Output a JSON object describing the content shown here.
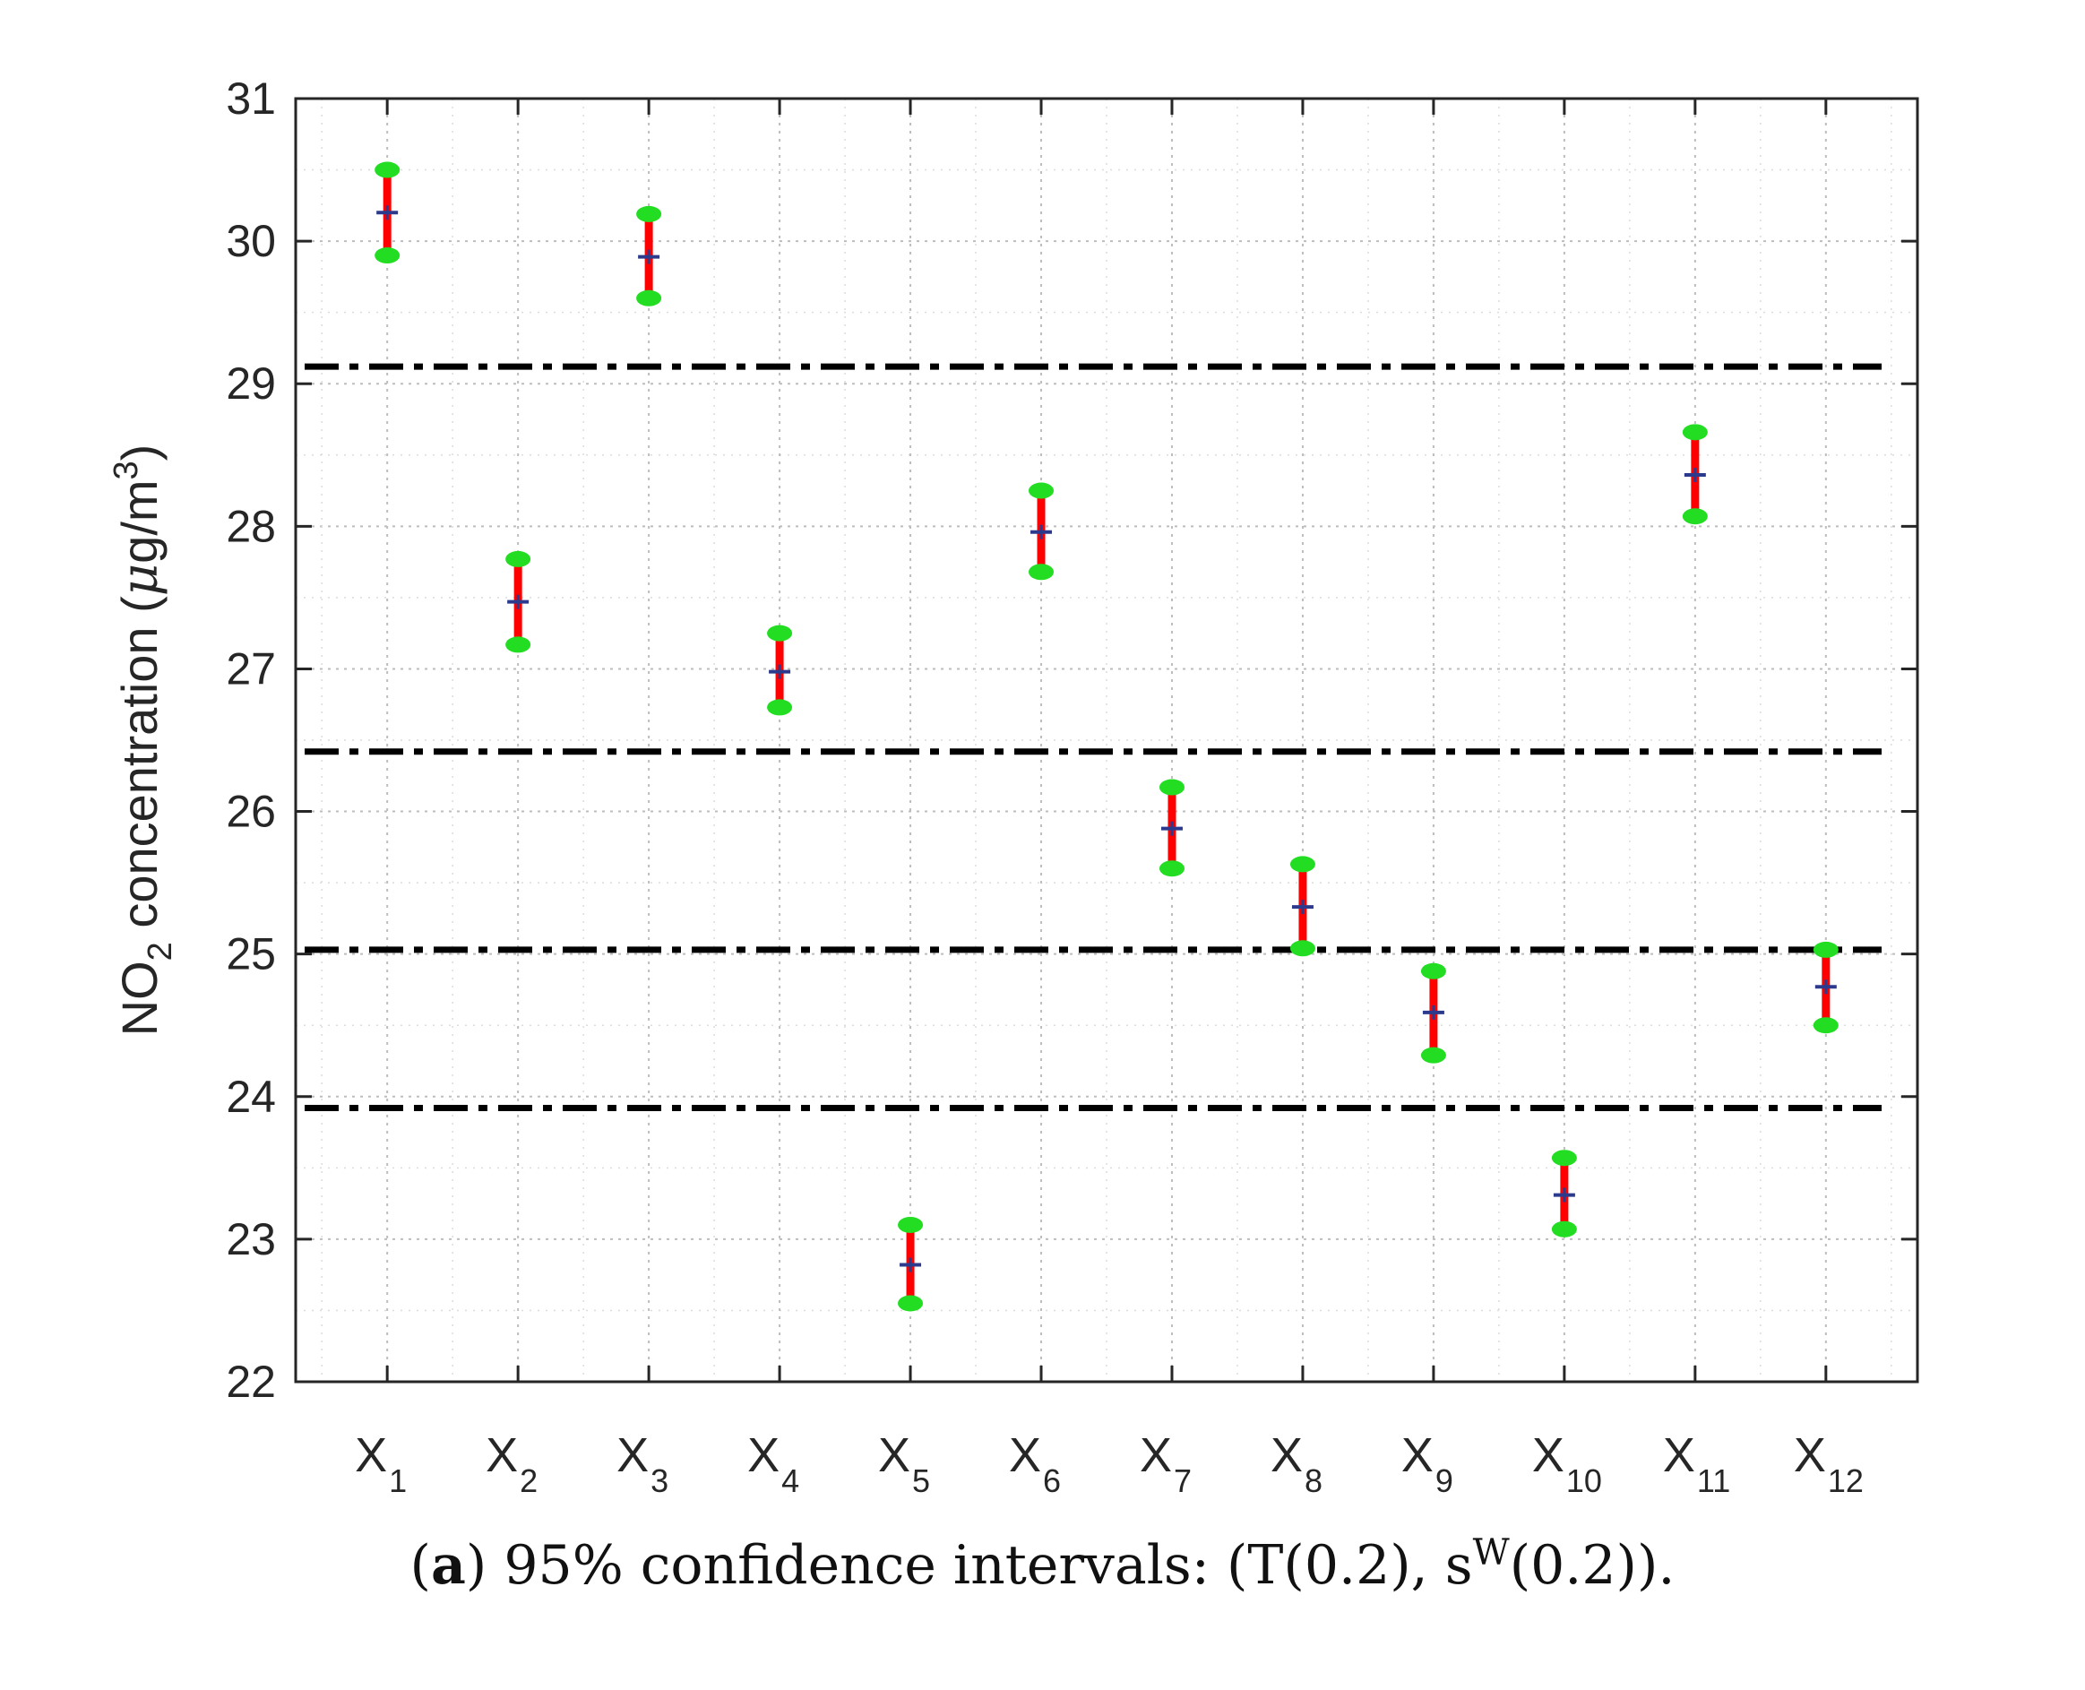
{
  "chart_data": {
    "type": "errorbar",
    "ylim": [
      22,
      31
    ],
    "yticks": [
      22,
      23,
      24,
      25,
      26,
      27,
      28,
      29,
      30,
      31
    ],
    "ylabel": {
      "prefix": "NO",
      "sub": "2",
      "middle": " concentration (",
      "mu": "μ",
      "unit": "g/m",
      "sup": "3",
      "suffix": ")"
    },
    "categories": [
      {
        "base": "X",
        "sub": "1"
      },
      {
        "base": "X",
        "sub": "2"
      },
      {
        "base": "X",
        "sub": "3"
      },
      {
        "base": "X",
        "sub": "4"
      },
      {
        "base": "X",
        "sub": "5"
      },
      {
        "base": "X",
        "sub": "6"
      },
      {
        "base": "X",
        "sub": "7"
      },
      {
        "base": "X",
        "sub": "8"
      },
      {
        "base": "X",
        "sub": "9"
      },
      {
        "base": "X",
        "sub": "10"
      },
      {
        "base": "X",
        "sub": "11"
      },
      {
        "base": "X",
        "sub": "12"
      }
    ],
    "intervals": [
      {
        "mean": 30.2,
        "lower": 29.9,
        "upper": 30.5
      },
      {
        "mean": 27.47,
        "lower": 27.17,
        "upper": 27.77
      },
      {
        "mean": 29.89,
        "lower": 29.6,
        "upper": 30.19
      },
      {
        "mean": 26.98,
        "lower": 26.73,
        "upper": 27.25
      },
      {
        "mean": 22.82,
        "lower": 22.55,
        "upper": 23.1
      },
      {
        "mean": 27.96,
        "lower": 27.68,
        "upper": 28.25
      },
      {
        "mean": 25.88,
        "lower": 25.6,
        "upper": 26.17
      },
      {
        "mean": 25.33,
        "lower": 25.04,
        "upper": 25.63
      },
      {
        "mean": 24.59,
        "lower": 24.29,
        "upper": 24.88
      },
      {
        "mean": 23.31,
        "lower": 23.07,
        "upper": 23.57
      },
      {
        "mean": 28.36,
        "lower": 28.07,
        "upper": 28.66
      },
      {
        "mean": 24.77,
        "lower": 24.5,
        "upper": 25.03
      }
    ],
    "reference_lines": [
      29.12,
      26.42,
      25.03,
      23.92
    ],
    "grid": true,
    "colors": {
      "interval": "#ff0000",
      "endpoint": "#22dd22",
      "mean": "#2b3a8c",
      "reference": "#000000",
      "grid": "#c8c8c8"
    }
  },
  "caption": {
    "label": "a",
    "text": " 95% confidence intervals:  (T(0.2), s",
    "sup": "W",
    "tail": "(0.2))."
  }
}
